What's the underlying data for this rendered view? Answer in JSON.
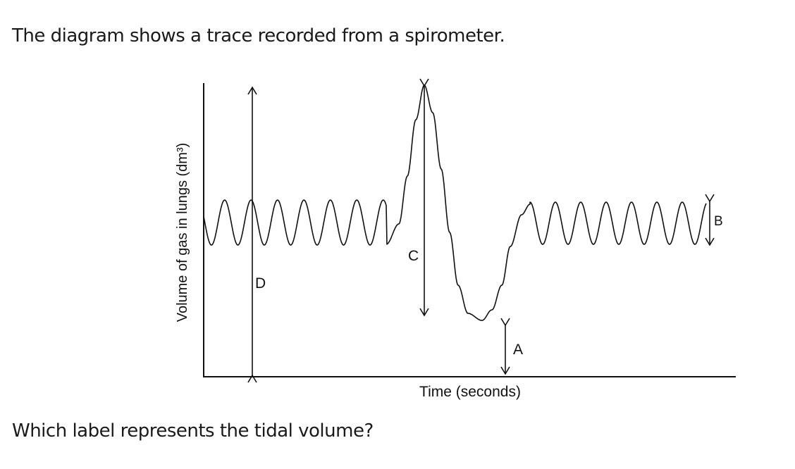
{
  "intro_text": "The diagram shows a trace recorded from a spirometer.",
  "question_text": "Which label represents the tidal volume?",
  "diagram": {
    "y_axis_label": "Volume of gas in lungs (dm³)",
    "x_axis_label": "Time (seconds)",
    "labels": {
      "a": "A",
      "b": "B",
      "c": "C",
      "d": "D"
    }
  }
}
